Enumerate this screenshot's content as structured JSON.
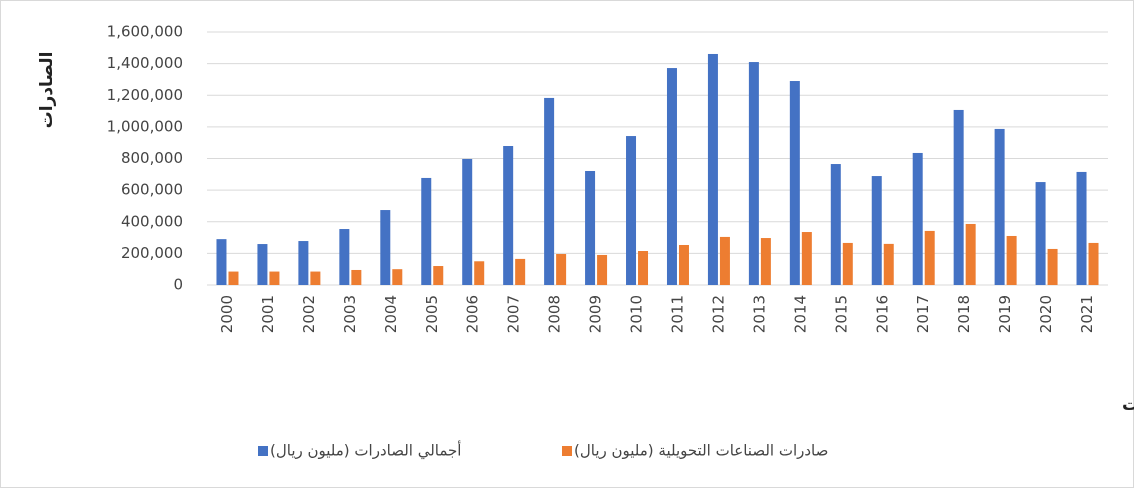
{
  "chart_data": {
    "type": "bar",
    "y_label": "الصادرات",
    "x_label": "السنوات",
    "categories": [
      "2000",
      "2001",
      "2002",
      "2003",
      "2004",
      "2005",
      "2006",
      "2007",
      "2008",
      "2009",
      "2010",
      "2011",
      "2012",
      "2013",
      "2014",
      "2015",
      "2016",
      "2017",
      "2018",
      "2019",
      "2020",
      "2021"
    ],
    "series": [
      {
        "name": "أجمالي الصادرات (مليون ريال)",
        "color": "#4472c4",
        "values": [
          290000,
          259000,
          278000,
          354000,
          474000,
          677000,
          797000,
          879000,
          1183000,
          721000,
          942000,
          1372000,
          1461000,
          1410000,
          1290000,
          765000,
          689000,
          835000,
          1107000,
          987000,
          651000,
          715000
        ]
      },
      {
        "name": "صادرات الصناعات التحويلية (مليون ريال)",
        "color": "#ed7d31",
        "values": [
          85000,
          85000,
          85000,
          95000,
          100000,
          120000,
          150000,
          165000,
          196000,
          190000,
          215000,
          253000,
          304000,
          297000,
          335000,
          266000,
          260000,
          342000,
          386000,
          310000,
          228000,
          266000
        ]
      }
    ],
    "ylim": [
      0,
      1600000
    ],
    "yticks": [
      0,
      {
        "value": 200000,
        "label": "200,000"
      },
      {
        "value": 400000,
        "label": "400,000"
      },
      {
        "value": 600000,
        "label": "600,000"
      },
      {
        "value": 800000,
        "label": "800,000"
      },
      {
        "value": 1000000,
        "label": "1,000,000"
      },
      {
        "value": 1200000,
        "label": "1,200,000"
      },
      {
        "value": 1400000,
        "label": "1,400,000"
      },
      {
        "value": 1600000,
        "label": "1,600,000"
      }
    ],
    "grid": true
  }
}
